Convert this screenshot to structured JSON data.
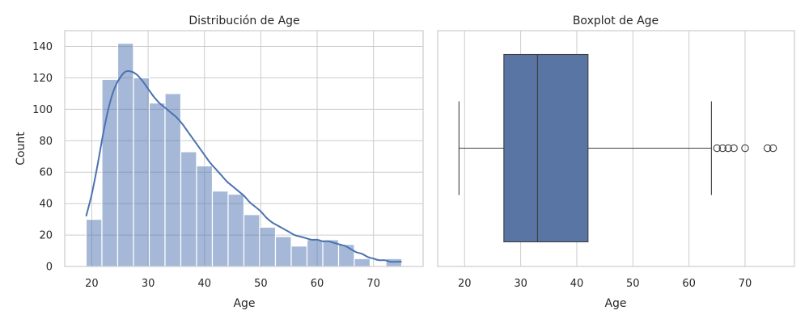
{
  "chart_data": [
    {
      "type": "bar",
      "title": "Distribución de Age",
      "xlabel": "Age",
      "ylabel": "Count",
      "xlim": [
        15.2,
        78.8
      ],
      "ylim": [
        0,
        150
      ],
      "xticks": [
        20,
        30,
        40,
        50,
        60,
        70
      ],
      "yticks": [
        0,
        20,
        40,
        60,
        80,
        100,
        120,
        140
      ],
      "grid": true,
      "bar_color": "#4c72b0",
      "bins": [
        {
          "start": 19.0,
          "end": 21.8,
          "count": 30
        },
        {
          "start": 21.8,
          "end": 24.6,
          "count": 119
        },
        {
          "start": 24.6,
          "end": 27.4,
          "count": 142
        },
        {
          "start": 27.4,
          "end": 30.2,
          "count": 120
        },
        {
          "start": 30.2,
          "end": 33.0,
          "count": 104
        },
        {
          "start": 33.0,
          "end": 35.8,
          "count": 110
        },
        {
          "start": 35.8,
          "end": 38.6,
          "count": 73
        },
        {
          "start": 38.6,
          "end": 41.4,
          "count": 64
        },
        {
          "start": 41.4,
          "end": 44.2,
          "count": 48
        },
        {
          "start": 44.2,
          "end": 47.0,
          "count": 46
        },
        {
          "start": 47.0,
          "end": 49.8,
          "count": 33
        },
        {
          "start": 49.8,
          "end": 52.6,
          "count": 25
        },
        {
          "start": 52.6,
          "end": 55.4,
          "count": 19
        },
        {
          "start": 55.4,
          "end": 58.2,
          "count": 13
        },
        {
          "start": 58.2,
          "end": 61.0,
          "count": 17
        },
        {
          "start": 61.0,
          "end": 63.8,
          "count": 17
        },
        {
          "start": 63.8,
          "end": 66.6,
          "count": 14
        },
        {
          "start": 66.6,
          "end": 69.4,
          "count": 5
        },
        {
          "start": 69.4,
          "end": 72.2,
          "count": 0
        },
        {
          "start": 72.2,
          "end": 75.0,
          "count": 5
        }
      ],
      "kde": {
        "x": [
          19,
          20,
          21,
          22,
          23,
          24,
          25,
          26,
          27,
          28,
          29,
          30,
          31,
          32,
          33,
          34,
          35,
          36,
          37,
          38,
          39,
          40,
          41,
          42,
          43,
          44,
          45,
          46,
          47,
          48,
          49,
          50,
          51,
          52,
          53,
          54,
          55,
          56,
          57,
          58,
          59,
          60,
          61,
          62,
          63,
          64,
          65,
          66,
          67,
          68,
          69,
          70,
          71,
          72,
          73,
          74,
          75
        ],
        "y": [
          32,
          46,
          64,
          84,
          101,
          113,
          120,
          124,
          124,
          122,
          118,
          113,
          108,
          104,
          101,
          98,
          95,
          91,
          86,
          81,
          76,
          71,
          66,
          62,
          58,
          54,
          51,
          48,
          45,
          41,
          38,
          35,
          31,
          28,
          26,
          24,
          22,
          20,
          19,
          18,
          17,
          17,
          16,
          16,
          15,
          14,
          13,
          11,
          9,
          8,
          6,
          5,
          4,
          4,
          3,
          3,
          3
        ]
      }
    },
    {
      "type": "box",
      "title": "Boxplot de Age",
      "xlabel": "Age",
      "xlim": [
        15.2,
        78.8
      ],
      "xticks": [
        20,
        30,
        40,
        50,
        60,
        70
      ],
      "grid": true,
      "box_color": "#5975a4",
      "whisker_low": 19,
      "q1": 27,
      "median": 33,
      "q3": 42,
      "whisker_high": 64,
      "outliers": [
        65,
        66,
        67,
        68,
        70,
        74,
        75
      ]
    }
  ]
}
